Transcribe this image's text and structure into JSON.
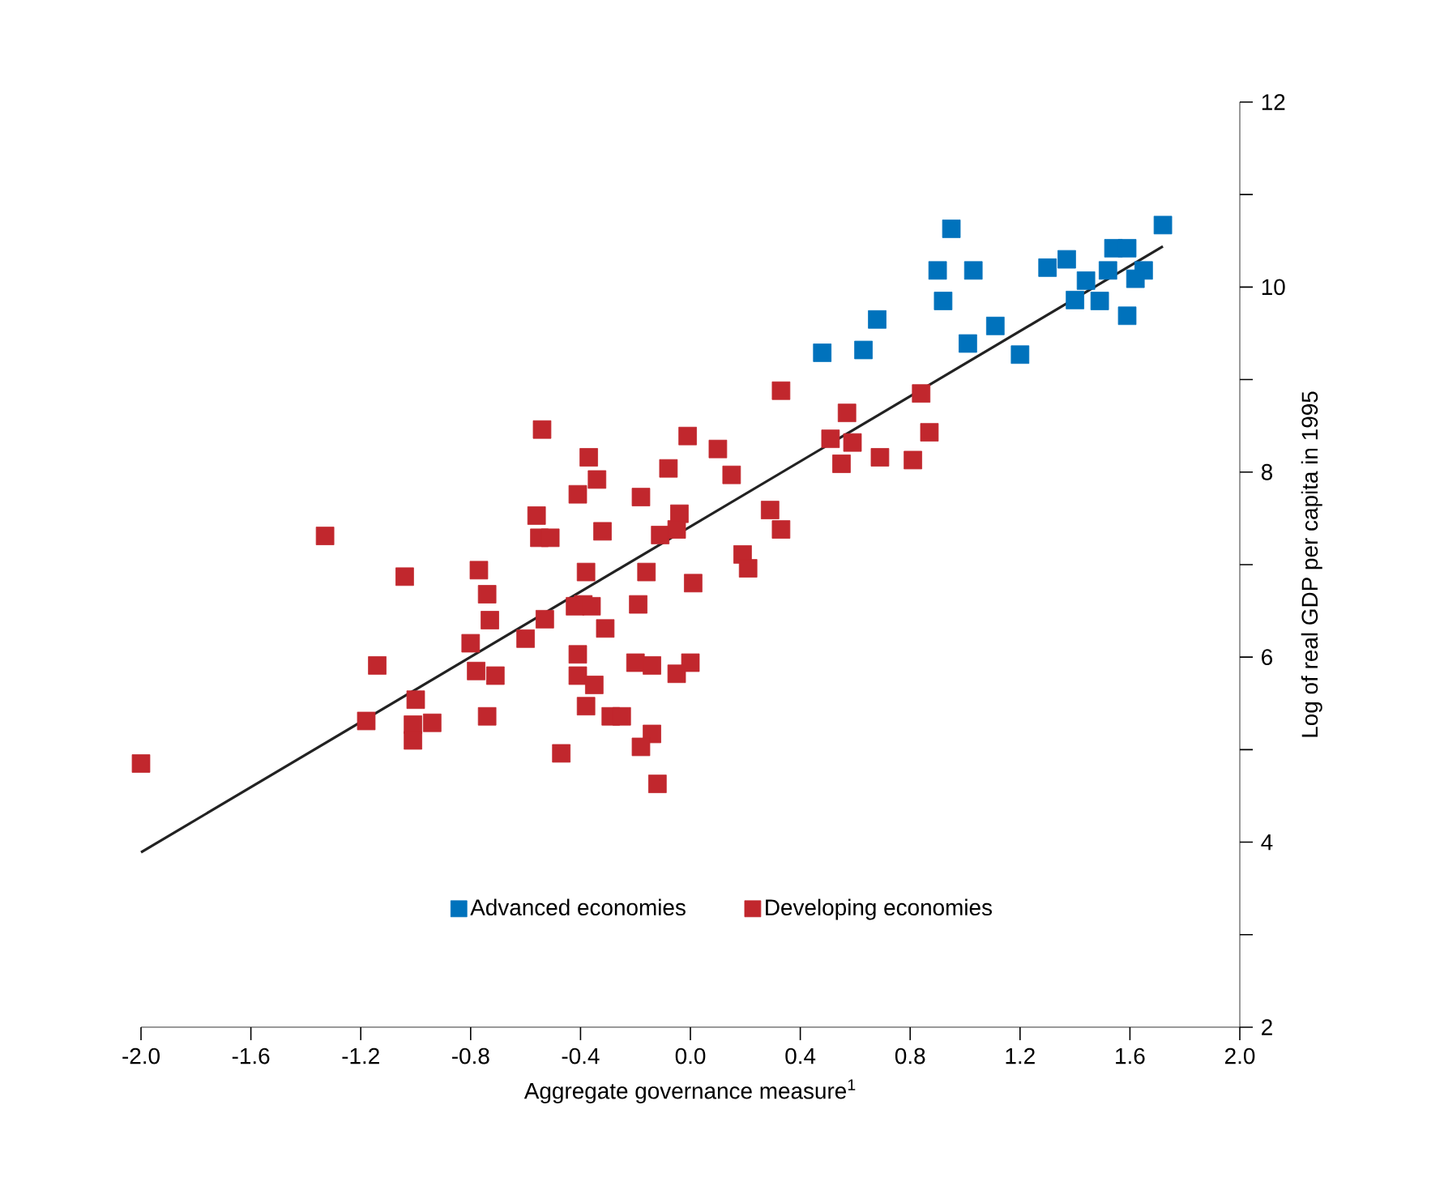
{
  "chart_data": {
    "type": "scatter",
    "xlabel": "Aggregate governance measure$^{1}$",
    "ylabel": "Log of real GDP per capita in 1995",
    "xlim": [
      -2.0,
      2.0
    ],
    "ylim": [
      2,
      12
    ],
    "xticks": [
      {
        "value": -2.0,
        "label": "-2.0"
      },
      {
        "value": -1.6,
        "label": "-1.6"
      },
      {
        "value": -1.2,
        "label": "-1.2"
      },
      {
        "value": -0.8,
        "label": "-0.8"
      },
      {
        "value": -0.4,
        "label": "-0.4"
      },
      {
        "value": 0.0,
        "label": "0.0"
      },
      {
        "value": 0.4,
        "label": "0.4"
      },
      {
        "value": 0.8,
        "label": "0.8"
      },
      {
        "value": 1.2,
        "label": "1.2"
      },
      {
        "value": 1.6,
        "label": "1.6"
      },
      {
        "value": 2.0,
        "label": "2.0"
      }
    ],
    "yticks": [
      2,
      {
        "value": 3,
        "label": null
      },
      4,
      {
        "value": 5,
        "label": null
      },
      6,
      {
        "value": 7,
        "label": null
      },
      8,
      {
        "value": 9,
        "label": null
      },
      10,
      {
        "value": 11,
        "label": null
      },
      12
    ],
    "legend": "bottom",
    "marker": "square",
    "series": [
      {
        "name": "Advanced economies",
        "color": "#0072bc",
        "x": [
          0.48,
          0.63,
          0.68,
          0.95,
          0.9,
          1.03,
          0.92,
          1.01,
          1.11,
          1.2,
          1.3,
          1.37,
          1.44,
          1.4,
          1.49,
          1.54,
          1.59,
          1.52,
          1.65,
          1.62,
          1.59,
          1.72
        ],
        "values": [
          9.29,
          9.32,
          9.65,
          10.63,
          10.18,
          10.18,
          9.85,
          9.39,
          9.58,
          9.27,
          10.21,
          10.3,
          10.07,
          9.86,
          9.85,
          10.42,
          10.42,
          10.18,
          10.18,
          10.09,
          9.69,
          10.67
        ]
      },
      {
        "name": "Developing economies",
        "color": "#c1272d",
        "x": [
          -2.0,
          -1.33,
          -1.04,
          -1.14,
          -1.18,
          -1.0,
          -1.01,
          -1.01,
          -0.94,
          -0.77,
          -0.74,
          -0.73,
          -0.8,
          -0.78,
          -0.71,
          -0.74,
          -0.54,
          -0.56,
          -0.55,
          -0.51,
          -0.53,
          -0.6,
          -0.47,
          -0.37,
          -0.34,
          -0.41,
          -0.32,
          -0.38,
          -0.39,
          -0.42,
          -0.36,
          -0.31,
          -0.41,
          -0.41,
          -0.35,
          -0.38,
          -0.29,
          -0.25,
          -0.18,
          -0.08,
          -0.01,
          0.1,
          0.15,
          -0.04,
          -0.11,
          -0.05,
          -0.16,
          0.01,
          -0.19,
          -0.2,
          -0.14,
          -0.05,
          0.0,
          -0.14,
          -0.18,
          -0.12,
          0.29,
          0.33,
          0.19,
          0.21,
          0.57,
          0.51,
          0.59,
          0.55,
          0.69,
          0.81,
          0.87,
          0.33,
          0.84
        ],
        "values": [
          4.85,
          7.31,
          6.87,
          5.91,
          5.31,
          5.54,
          5.27,
          5.1,
          5.29,
          6.94,
          6.68,
          6.4,
          6.15,
          5.85,
          5.8,
          5.36,
          8.46,
          7.53,
          7.29,
          7.29,
          6.41,
          6.2,
          4.96,
          8.16,
          7.92,
          7.76,
          7.36,
          6.92,
          6.57,
          6.55,
          6.55,
          6.31,
          6.03,
          5.8,
          5.7,
          5.47,
          5.36,
          5.36,
          7.73,
          8.04,
          8.39,
          8.25,
          7.97,
          7.55,
          7.32,
          7.38,
          6.92,
          6.8,
          6.57,
          5.94,
          5.91,
          5.82,
          5.94,
          5.17,
          5.03,
          4.63,
          7.59,
          7.38,
          7.11,
          6.96,
          8.64,
          8.36,
          8.32,
          8.09,
          8.16,
          8.13,
          8.43,
          8.88,
          8.85
        ]
      },
      {
        "type": "line",
        "marker": "none",
        "color": "#222222",
        "x": [
          -2.0,
          1.72
        ],
        "values": [
          3.89,
          10.44
        ]
      }
    ]
  }
}
